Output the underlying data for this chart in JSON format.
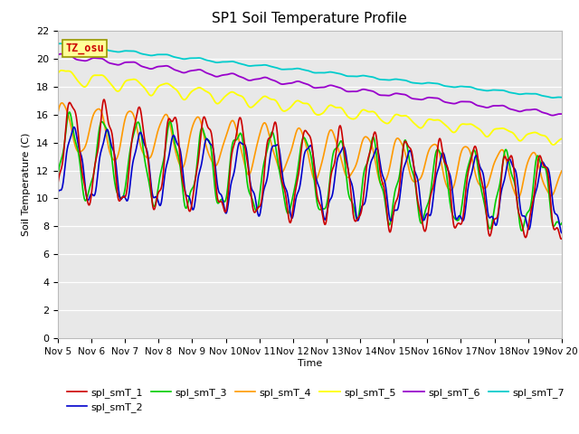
{
  "title": "SP1 Soil Temperature Profile",
  "xlabel": "Time",
  "ylabel": "Soil Temperature (C)",
  "ylim": [
    0,
    22
  ],
  "yticks": [
    0,
    2,
    4,
    6,
    8,
    10,
    12,
    14,
    16,
    18,
    20,
    22
  ],
  "x_labels": [
    "Nov 5",
    "Nov 6",
    "Nov 7",
    "Nov 8",
    "Nov 9",
    "Nov 10",
    "Nov 11",
    "Nov 12",
    "Nov 13",
    "Nov 14",
    "Nov 15",
    "Nov 16",
    "Nov 17",
    "Nov 18",
    "Nov 19",
    "Nov 20"
  ],
  "colors": {
    "spl_smT_1": "#cc0000",
    "spl_smT_2": "#0000cc",
    "spl_smT_3": "#00cc00",
    "spl_smT_4": "#ff9900",
    "spl_smT_5": "#ffff00",
    "spl_smT_6": "#9900cc",
    "spl_smT_7": "#00cccc"
  },
  "bg_color": "#e8e8e8",
  "annotation_text": "TZ_osu",
  "annotation_color": "#cc0000",
  "annotation_bg": "#ffff99",
  "annotation_border": "#999900"
}
